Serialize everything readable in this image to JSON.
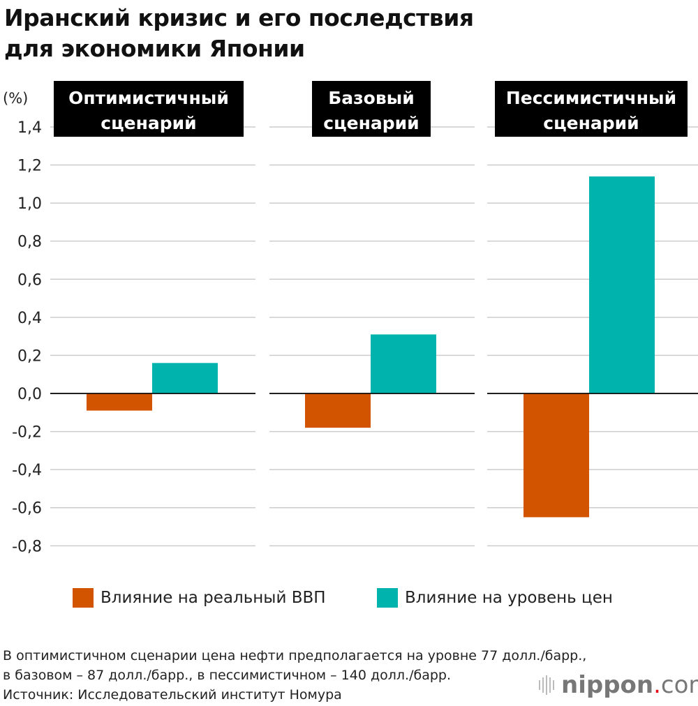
{
  "title_line1": "Иранский кризис и его последствия",
  "title_line2": "для экономики Японии",
  "chart_data": {
    "type": "bar",
    "ylabel": "(%)",
    "ylim": [
      -0.8,
      1.4
    ],
    "yticks": [
      "1,4",
      "1,2",
      "1,0",
      "0,8",
      "0,6",
      "0,4",
      "0,2",
      "0,0",
      "-0,2",
      "-0,4",
      "-0,6",
      "-0,8"
    ],
    "ytick_values": [
      1.4,
      1.2,
      1.0,
      0.8,
      0.6,
      0.4,
      0.2,
      0.0,
      -0.2,
      -0.4,
      -0.6,
      -0.8
    ],
    "grid": true,
    "legend_position": "bottom",
    "panels": [
      {
        "title_line1": "Оптимистичный",
        "title_line2": "сценарий"
      },
      {
        "title_line1": "Базовый",
        "title_line2": "сценарий"
      },
      {
        "title_line1": "Пессимистичный",
        "title_line2": "сценарий"
      }
    ],
    "series": [
      {
        "name": "Влияние на реальный ВВП",
        "color": "#d35400",
        "values": [
          -0.09,
          -0.18,
          -0.65
        ]
      },
      {
        "name": "Влияние на уровень цен",
        "color": "#00b3ad",
        "values": [
          0.16,
          0.31,
          1.14
        ]
      }
    ]
  },
  "note_line1": "В оптимистичном сценарии цена нефти предполагается на уровне 77 долл./барр.,",
  "note_line2": "в базовом – 87 долл./барр., в пессимистичном – 140 долл./барр.",
  "note_line3": "Источник: Исследовательский институт Номура",
  "logo": {
    "brand": "nippon",
    "dot": ".",
    "tld": "com"
  }
}
